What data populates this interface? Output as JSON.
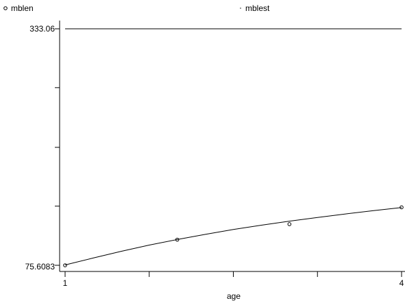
{
  "chart_data": {
    "type": "scatter",
    "xlabel": "age",
    "ylabel": "",
    "xlim": [
      1,
      4
    ],
    "ylim": [
      75.6083,
      333.06
    ],
    "x_ticks": [
      1,
      1.75,
      2.5,
      3.25,
      4
    ],
    "x_tick_labels": [
      "1",
      "",
      "",
      "",
      "4"
    ],
    "y_ticks": [
      75.6083,
      140,
      204,
      269,
      333.06
    ],
    "y_tick_labels": [
      "75.6083",
      "",
      "",
      "",
      "333.06"
    ],
    "grid": false,
    "legend_position": "top",
    "series": [
      {
        "name": "mblen",
        "style": "hollow-circle-markers",
        "x": [
          1,
          2,
          3,
          4
        ],
        "y": [
          75.6083,
          103.5,
          120.4,
          138.7
        ]
      },
      {
        "name": "mblest",
        "style": "line",
        "x": [
          1,
          1.25,
          1.5,
          1.75,
          2,
          2.25,
          2.5,
          2.75,
          3,
          3.25,
          3.5,
          3.75,
          4
        ],
        "y": [
          76,
          83.5,
          90.8,
          97.6,
          103.7,
          109.3,
          114.6,
          119.3,
          123.7,
          127.7,
          131.5,
          135.1,
          138.5
        ]
      }
    ],
    "reference_line": {
      "y": 333.06
    }
  }
}
